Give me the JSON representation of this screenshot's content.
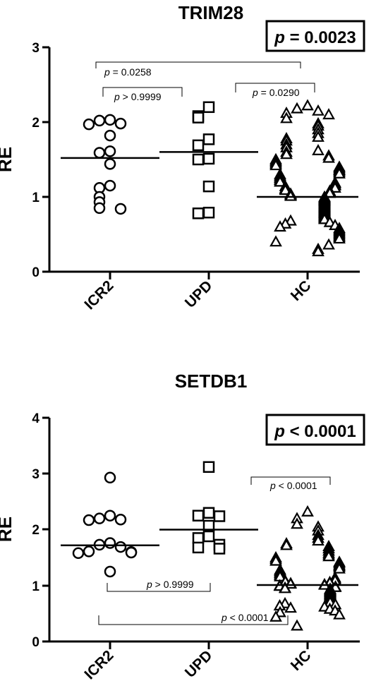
{
  "chart_data": [
    {
      "type": "scatter",
      "title": "TRIM28",
      "ylabel": "RE",
      "ylim": [
        0,
        3
      ],
      "yticks": [
        "0",
        "1",
        "2",
        "3"
      ],
      "categories": [
        "ICR2",
        "UPD",
        "HC"
      ],
      "overall_p": {
        "p": "p",
        "rest": " = 0.0023"
      },
      "comparisons": [
        {
          "from": "ICR2",
          "to": "HC",
          "p": "p",
          "rest": " = 0.0258"
        },
        {
          "from": "ICR2",
          "to": "UPD",
          "p": "p",
          "rest": " > 0.9999"
        },
        {
          "from": "UPD",
          "to": "HC",
          "p": "p",
          "rest": " = 0.0290"
        }
      ],
      "series": [
        {
          "category": "ICR2",
          "marker": "circle",
          "median": 1.52,
          "values": [
            2.03,
            2.02,
            1.98,
            1.97,
            1.82,
            1.61,
            1.59,
            1.44,
            1.15,
            1.12,
            1.0,
            0.93,
            0.85,
            0.84
          ]
        },
        {
          "category": "UPD",
          "marker": "square",
          "median": 1.6,
          "values": [
            2.2,
            2.08,
            2.06,
            1.77,
            1.69,
            1.5,
            1.51,
            1.14,
            0.79,
            0.78
          ]
        },
        {
          "category": "HC",
          "marker": "triangle",
          "median": 1.0,
          "values": [
            2.22,
            2.18,
            2.15,
            2.12,
            2.1,
            2.05,
            1.98,
            1.95,
            1.9,
            1.85,
            1.8,
            1.78,
            1.75,
            1.7,
            1.66,
            1.62,
            1.6,
            1.57,
            1.55,
            1.52,
            1.5,
            1.48,
            1.46,
            1.44,
            1.42,
            1.4,
            1.38,
            1.36,
            1.35,
            1.33,
            1.31,
            1.3,
            1.28,
            1.26,
            1.25,
            1.23,
            1.22,
            1.2,
            1.19,
            1.18,
            1.16,
            1.15,
            1.14,
            1.12,
            1.11,
            1.1,
            1.09,
            1.08,
            1.07,
            1.06,
            1.05,
            1.04,
            1.03,
            1.02,
            1.01,
            1.0,
            0.99,
            0.98,
            0.97,
            0.96,
            0.95,
            0.94,
            0.93,
            0.92,
            0.91,
            0.9,
            0.89,
            0.88,
            0.87,
            0.86,
            0.85,
            0.84,
            0.83,
            0.82,
            0.81,
            0.8,
            0.79,
            0.78,
            0.77,
            0.76,
            0.75,
            0.74,
            0.73,
            0.72,
            0.71,
            0.7,
            0.68,
            0.66,
            0.64,
            0.62,
            0.6,
            0.58,
            0.56,
            0.54,
            0.52,
            0.5,
            0.48,
            0.46,
            0.44,
            0.4,
            0.36,
            0.3,
            0.27
          ]
        }
      ]
    },
    {
      "type": "scatter",
      "title": "SETDB1",
      "ylabel": "RE",
      "ylim": [
        0,
        4
      ],
      "yticks": [
        "0",
        "1",
        "2",
        "3",
        "4"
      ],
      "categories": [
        "ICR2",
        "UPD",
        "HC"
      ],
      "overall_p": {
        "p": "p",
        "rest": " < 0.0001"
      },
      "comparisons": [
        {
          "from": "UPD",
          "to": "HC",
          "p": "p",
          "rest": " < 0.0001"
        },
        {
          "from": "ICR2",
          "to": "UPD",
          "p": "p",
          "rest": " > 0.9999"
        },
        {
          "from": "ICR2",
          "to": "HC",
          "p": "p",
          "rest": " < 0.0001"
        }
      ],
      "series": [
        {
          "category": "ICR2",
          "marker": "circle",
          "median": 1.72,
          "values": [
            2.93,
            2.25,
            2.2,
            2.18,
            2.17,
            1.76,
            1.73,
            1.69,
            1.61,
            1.6,
            1.59,
            1.58,
            1.25
          ]
        },
        {
          "category": "UPD",
          "marker": "square",
          "median": 2.0,
          "values": [
            3.12,
            2.3,
            2.24,
            2.25,
            2.07,
            1.88,
            1.85,
            1.73,
            1.68,
            1.66
          ]
        },
        {
          "category": "HC",
          "marker": "triangle",
          "median": 1.01,
          "values": [
            2.32,
            2.2,
            2.1,
            2.05,
            1.98,
            1.9,
            1.85,
            1.8,
            1.75,
            1.72,
            1.7,
            1.66,
            1.62,
            1.58,
            1.55,
            1.52,
            1.5,
            1.47,
            1.44,
            1.42,
            1.4,
            1.37,
            1.35,
            1.33,
            1.3,
            1.28,
            1.26,
            1.24,
            1.22,
            1.2,
            1.18,
            1.16,
            1.14,
            1.12,
            1.1,
            1.09,
            1.08,
            1.07,
            1.06,
            1.05,
            1.04,
            1.03,
            1.02,
            1.01,
            1.0,
            0.99,
            0.98,
            0.97,
            0.96,
            0.95,
            0.94,
            0.93,
            0.92,
            0.91,
            0.9,
            0.89,
            0.88,
            0.87,
            0.86,
            0.85,
            0.84,
            0.83,
            0.82,
            0.81,
            0.8,
            0.79,
            0.78,
            0.77,
            0.76,
            0.75,
            0.74,
            0.73,
            0.72,
            0.71,
            0.7,
            0.68,
            0.66,
            0.64,
            0.62,
            0.6,
            0.58,
            0.55,
            0.52,
            0.48,
            0.44,
            0.28
          ]
        }
      ]
    }
  ]
}
